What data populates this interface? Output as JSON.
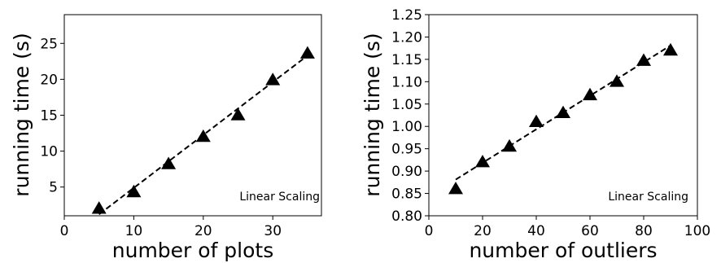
{
  "chart_data": [
    {
      "type": "scatter",
      "xlabel": "number of plots",
      "ylabel": "running time (s)",
      "xlim": [
        0,
        37
      ],
      "ylim": [
        1,
        29
      ],
      "xticks": [
        0,
        10,
        20,
        30
      ],
      "yticks": [
        5,
        10,
        15,
        20,
        25
      ],
      "x": [
        5,
        10,
        15,
        20,
        25,
        30,
        35
      ],
      "y": [
        2,
        4.3,
        8.2,
        12,
        15,
        19.9,
        23.6
      ],
      "trend_line": {
        "style": "dashed",
        "x": [
          5,
          35
        ],
        "y": [
          1.2,
          23.3
        ]
      },
      "marker": "triangle",
      "grid": false,
      "annotation": "Linear Scaling"
    },
    {
      "type": "scatter",
      "xlabel": "number of outliers",
      "ylabel": "running time (s)",
      "xlim": [
        0,
        100
      ],
      "ylim": [
        0.8,
        1.25
      ],
      "xticks": [
        0,
        20,
        40,
        60,
        80,
        100
      ],
      "yticks": [
        "0.80",
        "0.85",
        "0.90",
        "0.95",
        "1.00",
        "1.05",
        "1.10",
        "1.15",
        "1.20",
        "1.25"
      ],
      "x": [
        10,
        20,
        30,
        40,
        50,
        60,
        70,
        80,
        90
      ],
      "y": [
        0.86,
        0.92,
        0.955,
        1.01,
        1.03,
        1.07,
        1.1,
        1.147,
        1.17
      ],
      "trend_line": {
        "style": "dashed",
        "x": [
          10,
          90
        ],
        "y": [
          0.881,
          1.181
        ]
      },
      "marker": "triangle",
      "grid": false,
      "annotation": "Linear Scaling"
    }
  ]
}
